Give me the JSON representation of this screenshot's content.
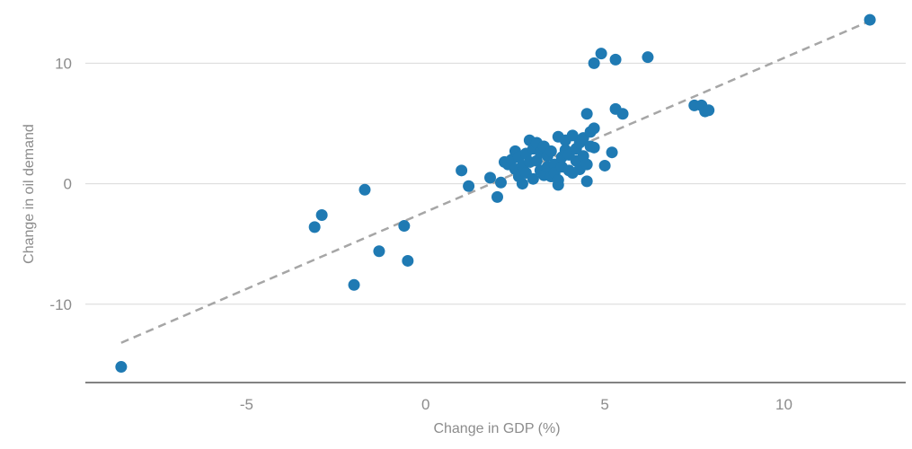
{
  "chart_data": {
    "type": "scatter",
    "xlabel": "Change in GDP (%)",
    "ylabel": "Change in oil demand",
    "xlim": [
      -9.5,
      13.4
    ],
    "ylim": [
      -16.5,
      14.5
    ],
    "x_ticks": [
      -5,
      0,
      5,
      10
    ],
    "x_tick_labels": [
      "-5",
      "0",
      "5",
      "10"
    ],
    "y_ticks": [
      -10,
      0,
      10
    ],
    "y_tick_labels": [
      "-10",
      "0",
      "10"
    ],
    "grid": "horizontal",
    "colors": {
      "points": "#1f7ab3",
      "trendline": "#a6a6a6",
      "gridline": "#d9d9d9",
      "axis": "#595959",
      "text": "#8c8c8c"
    },
    "trendline": {
      "x": [
        -8.5,
        12.4
      ],
      "y": [
        -13.2,
        13.5
      ],
      "style": "dashed"
    },
    "points": [
      {
        "x": -8.5,
        "y": -15.2
      },
      {
        "x": 12.4,
        "y": 13.6
      },
      {
        "x": -3.1,
        "y": -3.6
      },
      {
        "x": -2.9,
        "y": -2.6
      },
      {
        "x": -1.7,
        "y": -0.5
      },
      {
        "x": -2.0,
        "y": -8.4
      },
      {
        "x": -1.3,
        "y": -5.6
      },
      {
        "x": -0.6,
        "y": -3.5
      },
      {
        "x": -0.5,
        "y": -6.4
      },
      {
        "x": 1.0,
        "y": 1.1
      },
      {
        "x": 1.2,
        "y": -0.2
      },
      {
        "x": 1.8,
        "y": 0.5
      },
      {
        "x": 2.0,
        "y": -1.1
      },
      {
        "x": 2.1,
        "y": 0.1
      },
      {
        "x": 2.2,
        "y": 1.8
      },
      {
        "x": 2.3,
        "y": 1.6
      },
      {
        "x": 2.4,
        "y": 2.0
      },
      {
        "x": 2.5,
        "y": 2.7
      },
      {
        "x": 2.5,
        "y": 1.2
      },
      {
        "x": 2.6,
        "y": 0.6
      },
      {
        "x": 2.6,
        "y": 2.2
      },
      {
        "x": 2.7,
        "y": 0.0
      },
      {
        "x": 2.7,
        "y": 1.5
      },
      {
        "x": 2.8,
        "y": 2.5
      },
      {
        "x": 2.8,
        "y": 0.9
      },
      {
        "x": 2.9,
        "y": 3.6
      },
      {
        "x": 2.9,
        "y": 1.8
      },
      {
        "x": 3.0,
        "y": 2.9
      },
      {
        "x": 3.0,
        "y": 0.4
      },
      {
        "x": 3.1,
        "y": 3.4
      },
      {
        "x": 3.1,
        "y": 1.9
      },
      {
        "x": 3.2,
        "y": 2.6
      },
      {
        "x": 3.2,
        "y": 1.1
      },
      {
        "x": 3.3,
        "y": 3.1
      },
      {
        "x": 3.3,
        "y": 0.7
      },
      {
        "x": 3.4,
        "y": 2.3
      },
      {
        "x": 3.4,
        "y": 1.4
      },
      {
        "x": 3.5,
        "y": 2.7
      },
      {
        "x": 3.5,
        "y": 0.6
      },
      {
        "x": 3.6,
        "y": 1.6
      },
      {
        "x": 3.6,
        "y": 0.9
      },
      {
        "x": 3.7,
        "y": 3.9
      },
      {
        "x": 3.7,
        "y": -0.1
      },
      {
        "x": 3.7,
        "y": 0.3
      },
      {
        "x": 3.8,
        "y": 1.4
      },
      {
        "x": 3.8,
        "y": 2.2
      },
      {
        "x": 3.9,
        "y": 3.6
      },
      {
        "x": 3.9,
        "y": 2.8
      },
      {
        "x": 4.0,
        "y": 1.1
      },
      {
        "x": 4.0,
        "y": 2.4
      },
      {
        "x": 4.1,
        "y": 4.0
      },
      {
        "x": 4.1,
        "y": 0.9
      },
      {
        "x": 4.2,
        "y": 1.9
      },
      {
        "x": 4.2,
        "y": 2.9
      },
      {
        "x": 4.3,
        "y": 3.4
      },
      {
        "x": 4.3,
        "y": 1.2
      },
      {
        "x": 4.4,
        "y": 2.3
      },
      {
        "x": 4.4,
        "y": 3.8
      },
      {
        "x": 4.5,
        "y": 1.6
      },
      {
        "x": 4.5,
        "y": 5.8
      },
      {
        "x": 4.5,
        "y": 0.2
      },
      {
        "x": 4.6,
        "y": 4.3
      },
      {
        "x": 4.6,
        "y": 3.1
      },
      {
        "x": 4.7,
        "y": 4.6
      },
      {
        "x": 4.7,
        "y": 3.0
      },
      {
        "x": 4.7,
        "y": 10.0
      },
      {
        "x": 4.9,
        "y": 10.8
      },
      {
        "x": 5.0,
        "y": 1.5
      },
      {
        "x": 5.2,
        "y": 2.6
      },
      {
        "x": 5.3,
        "y": 6.2
      },
      {
        "x": 5.3,
        "y": 10.3
      },
      {
        "x": 5.5,
        "y": 5.8
      },
      {
        "x": 6.2,
        "y": 10.5
      },
      {
        "x": 7.5,
        "y": 6.5
      },
      {
        "x": 7.7,
        "y": 6.5
      },
      {
        "x": 7.8,
        "y": 6.0
      },
      {
        "x": 7.9,
        "y": 6.1
      }
    ]
  }
}
